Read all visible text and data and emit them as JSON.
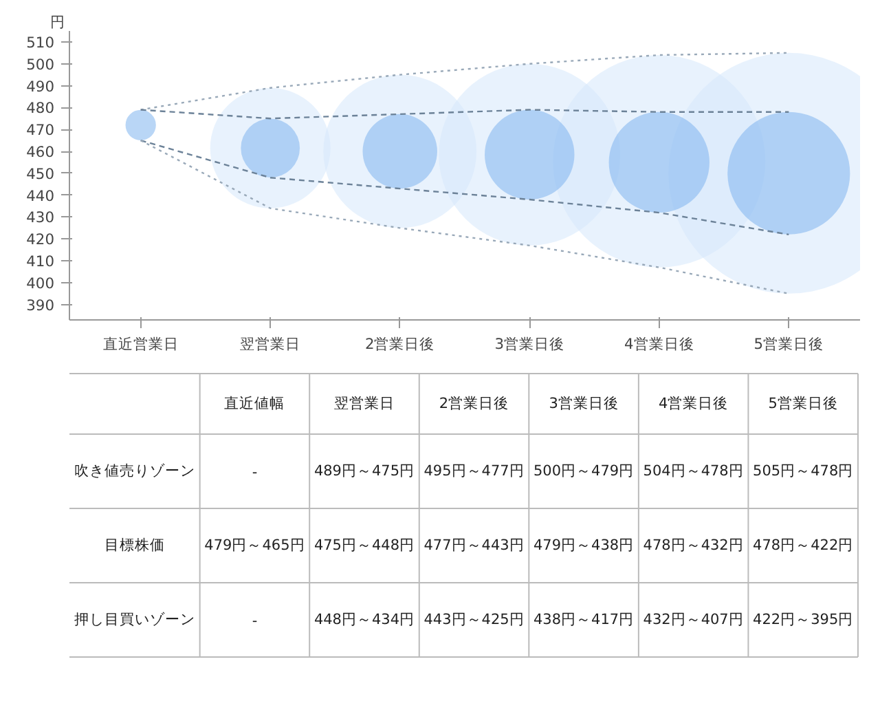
{
  "chart_data": [
    {
      "type": "bubble",
      "ylabel": "円",
      "categories": [
        "直近営業日",
        "翌営業日",
        "2営業日後",
        "3営業日後",
        "4営業日後",
        "5営業日後"
      ],
      "ylim": [
        383,
        515
      ],
      "yticks": [
        390,
        400,
        410,
        420,
        430,
        440,
        450,
        460,
        470,
        480,
        490,
        500,
        510
      ],
      "grid": false,
      "series": [
        {
          "type": "bubble",
          "color": "#d6e8fb",
          "values": [
            null,
            461.5,
            460,
            458.5,
            455.5,
            450
          ],
          "sizes": [
            null,
            0.25,
            0.405,
            0.569,
            0.778,
            1
          ]
        },
        {
          "type": "bubble",
          "color": "#7fb5ee",
          "values": [
            472,
            461.5,
            460,
            458.5,
            455,
            450
          ],
          "sizes": [
            0.016,
            0.06,
            0.096,
            0.139,
            0.175,
            0.259
          ]
        },
        {
          "type": "line",
          "line_style": "dotted",
          "color": "#98a8b8",
          "values": [
            479,
            489,
            495,
            500,
            504,
            505
          ]
        },
        {
          "type": "line",
          "line_style": "dashed",
          "color": "#6c8298",
          "values": [
            479,
            475,
            477,
            479,
            478,
            478
          ]
        },
        {
          "type": "line",
          "line_style": "dashed",
          "color": "#6c8298",
          "values": [
            465,
            448,
            443,
            438,
            432,
            422
          ]
        },
        {
          "type": "line",
          "line_style": "dotted",
          "color": "#98a8b8",
          "values": [
            465,
            434,
            425,
            417,
            407,
            395
          ]
        }
      ]
    },
    {
      "type": "heatmap",
      "cells": [
        [
          null,
          null,
          null,
          null,
          null,
          null
        ],
        [
          null,
          null,
          null,
          null,
          null,
          null
        ],
        [
          null,
          null,
          null,
          null,
          null,
          null
        ]
      ],
      "categories": [
        "直近値幅",
        "翌営業日",
        "2営業日後",
        "3営業日後",
        "4営業日後",
        "5営業日後"
      ],
      "y_categories": [
        "吹き値売りゾーン",
        "目標株価",
        "押し目買いゾーン"
      ],
      "cell_labels": [
        [
          "-",
          "489円～475円",
          "495円～477円",
          "500円～479円",
          "504円～478円",
          "505円～478円"
        ],
        [
          "479円～465円",
          "475円～448円",
          "477円～443円",
          "479円～438円",
          "478円～432円",
          "478円～422円"
        ],
        [
          "-",
          "448円～434円",
          "443円～425円",
          "438円～417円",
          "432円～407円",
          "422円～395円"
        ]
      ]
    }
  ]
}
